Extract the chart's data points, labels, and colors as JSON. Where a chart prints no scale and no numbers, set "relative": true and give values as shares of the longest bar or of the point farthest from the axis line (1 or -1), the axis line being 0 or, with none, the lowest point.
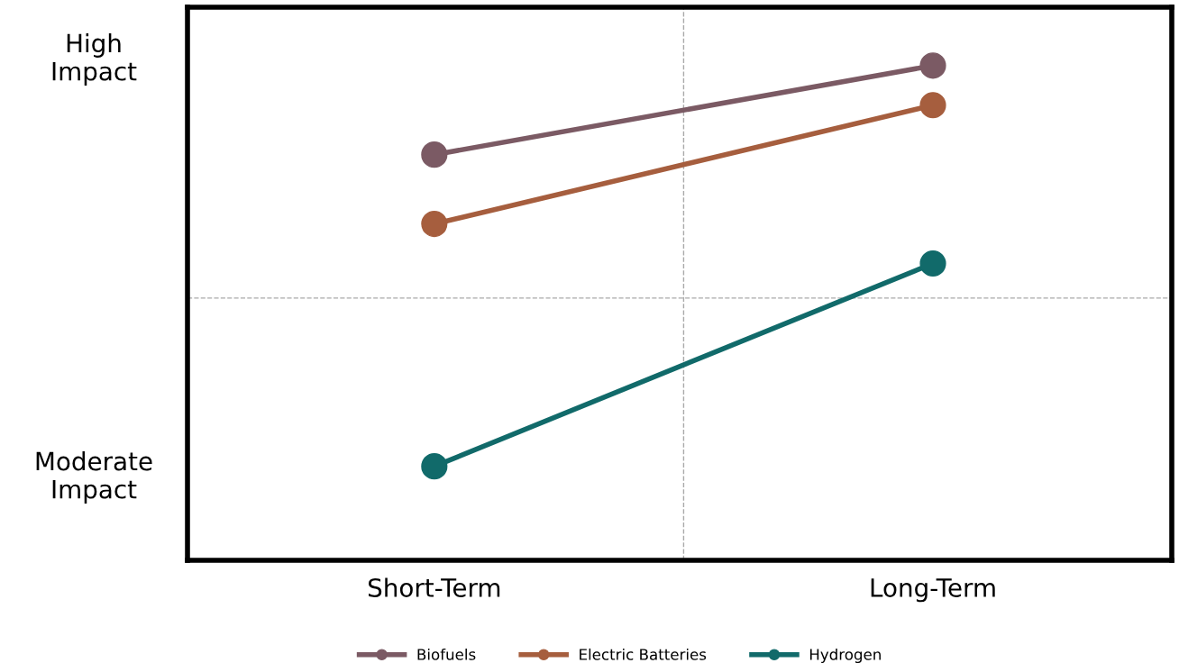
{
  "chart_data": {
    "type": "line",
    "categories": [
      "Short-Term",
      "Long-Term"
    ],
    "relative": true,
    "series": [
      {
        "name": "Biofuels",
        "color": "#7b5a64",
        "values": [
          0.82,
          1
        ]
      },
      {
        "name": "Electric Batteries",
        "color": "#a65e3e",
        "values": [
          0.68,
          0.92
        ]
      },
      {
        "name": "Hydrogen",
        "color": "#116a6a",
        "values": [
          0.19,
          0.6
        ]
      }
    ],
    "annotations": [
      "High\nImpact",
      "Moderate\nImpact"
    ],
    "ref_lines": [
      {
        "axis": "y",
        "value": 0.53,
        "color": "#aaaaaa",
        "line_style": "dashed"
      }
    ],
    "marker": "circle",
    "line_style": "solid",
    "legend": "bottom"
  }
}
